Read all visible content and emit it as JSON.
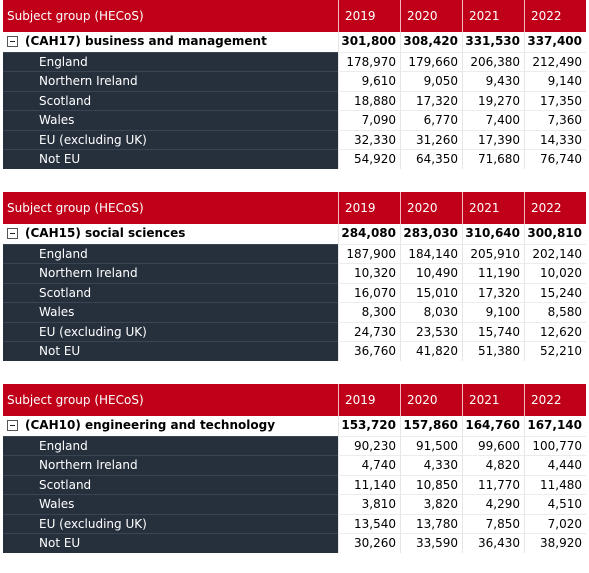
{
  "header_label": "Subject group (HECoS)",
  "years": [
    "2019",
    "2020",
    "2021",
    "2022"
  ],
  "tables": [
    {
      "group_name": "(CAH17) business and management",
      "totals": [
        "301,800",
        "308,420",
        "331,530",
        "337,400"
      ],
      "rows": [
        {
          "label": "England",
          "values": [
            "178,970",
            "179,660",
            "206,380",
            "212,490"
          ]
        },
        {
          "label": "Northern Ireland",
          "values": [
            "9,610",
            "9,050",
            "9,430",
            "9,140"
          ]
        },
        {
          "label": "Scotland",
          "values": [
            "18,880",
            "17,320",
            "19,270",
            "17,350"
          ]
        },
        {
          "label": "Wales",
          "values": [
            "7,090",
            "6,770",
            "7,400",
            "7,360"
          ]
        },
        {
          "label": "EU (excluding UK)",
          "values": [
            "32,330",
            "31,260",
            "17,390",
            "14,330"
          ]
        },
        {
          "label": "Not EU",
          "values": [
            "54,920",
            "64,350",
            "71,680",
            "76,740"
          ]
        }
      ]
    },
    {
      "group_name": "(CAH15) social sciences",
      "totals": [
        "284,080",
        "283,030",
        "310,640",
        "300,810"
      ],
      "rows": [
        {
          "label": "England",
          "values": [
            "187,900",
            "184,140",
            "205,910",
            "202,140"
          ]
        },
        {
          "label": "Northern Ireland",
          "values": [
            "10,320",
            "10,490",
            "11,190",
            "10,020"
          ]
        },
        {
          "label": "Scotland",
          "values": [
            "16,070",
            "15,010",
            "17,320",
            "15,240"
          ]
        },
        {
          "label": "Wales",
          "values": [
            "8,300",
            "8,030",
            "9,100",
            "8,580"
          ]
        },
        {
          "label": "EU (excluding UK)",
          "values": [
            "24,730",
            "23,530",
            "15,740",
            "12,620"
          ]
        },
        {
          "label": "Not EU",
          "values": [
            "36,760",
            "41,820",
            "51,380",
            "52,210"
          ]
        }
      ]
    },
    {
      "group_name": "(CAH10) engineering and technology",
      "totals": [
        "153,720",
        "157,860",
        "164,760",
        "167,140"
      ],
      "rows": [
        {
          "label": "England",
          "values": [
            "90,230",
            "91,500",
            "99,600",
            "100,770"
          ]
        },
        {
          "label": "Northern Ireland",
          "values": [
            "4,740",
            "4,330",
            "4,820",
            "4,440"
          ]
        },
        {
          "label": "Scotland",
          "values": [
            "11,140",
            "10,850",
            "11,770",
            "11,480"
          ]
        },
        {
          "label": "Wales",
          "values": [
            "3,810",
            "3,820",
            "4,290",
            "4,510"
          ]
        },
        {
          "label": "EU (excluding UK)",
          "values": [
            "13,540",
            "13,780",
            "7,850",
            "7,020"
          ]
        },
        {
          "label": "Not EU",
          "values": [
            "30,260",
            "33,590",
            "36,430",
            "38,920"
          ]
        }
      ]
    }
  ],
  "colors": {
    "header_red": "#c00018",
    "row_dark": "#262f3c"
  }
}
